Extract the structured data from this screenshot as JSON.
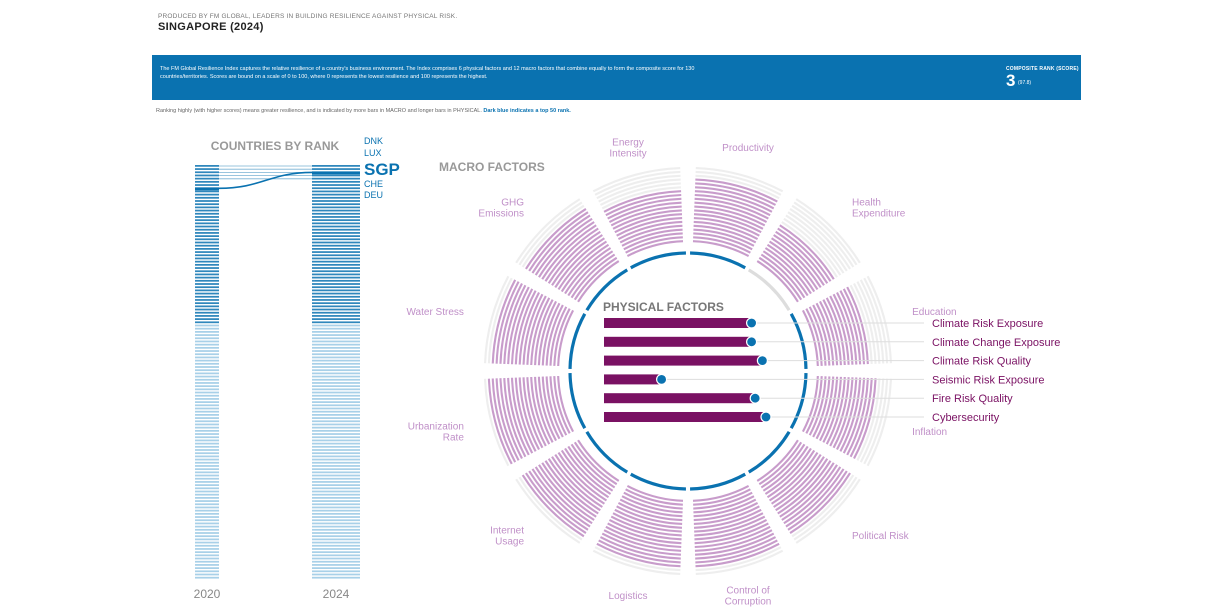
{
  "header": {
    "producer": "PRODUCED BY FM GLOBAL, LEADERS IN BUILDING RESILIENCE AGAINST PHYSICAL RISK.",
    "title": "SINGAPORE (2024)"
  },
  "banner": {
    "description": "The FM Global Resilience Index captures the relative resilience of a country's business environment. The Index comprises 6 physical factors and 12 macro factors that combine equally to form the composite score for 130 countries/territories. Scores are bound on a scale of 0 to 100, where 0 represents the lowest resilience and 100 represents the highest.",
    "composite_rank_label": "COMPOSITE RANK (SCORE)",
    "composite_rank": "3",
    "composite_score": "(97.8)"
  },
  "note": {
    "text": "Ranking highly (with higher scores) means greater resilience, and is indicated by more bars in MACRO and longer bars in PHYSICAL.",
    "emphasis": "Dark blue indicates a top 50 rank."
  },
  "colors": {
    "macro_bar": "#c89ccb",
    "macro_empty": "#eeeeee",
    "physical_bar": "#7a1163",
    "accent_blue": "#0a72b0",
    "light_blue": "#9fcbe6",
    "macro_label": "#c090c8"
  },
  "chart_data": [
    {
      "type": "bar",
      "title": "COUNTRIES BY RANK",
      "columns": [
        "2020",
        "2024"
      ],
      "top_countries": [
        "DNK",
        "LUX",
        "SGP",
        "CHE",
        "DEU"
      ],
      "highlight": "SGP",
      "countries_total": 130,
      "top_rank_threshold": 50,
      "rank_2020": 8,
      "rank_2024": 3
    },
    {
      "type": "bar",
      "title": "MACRO FACTORS",
      "max_bars": 20,
      "factors": [
        {
          "name": "Productivity",
          "bars": 17,
          "top50": true
        },
        {
          "name": "Health Expenditure",
          "bars": 12,
          "top50": false
        },
        {
          "name": "Education",
          "bars": 14,
          "top50": true
        },
        {
          "name": "Inflation",
          "bars": 16,
          "top50": true
        },
        {
          "name": "Political Risk",
          "bars": 17,
          "top50": true
        },
        {
          "name": "Control of Corruption",
          "bars": 18,
          "top50": true
        },
        {
          "name": "Logistics",
          "bars": 18,
          "top50": true
        },
        {
          "name": "Internet Usage",
          "bars": 18,
          "top50": true
        },
        {
          "name": "Urbanization Rate",
          "bars": 19,
          "top50": true
        },
        {
          "name": "Water Stress",
          "bars": 18,
          "top50": true
        },
        {
          "name": "GHG Emissions",
          "bars": 17,
          "top50": true
        },
        {
          "name": "Energy Intensity",
          "bars": 14,
          "top50": true
        }
      ]
    },
    {
      "type": "bar",
      "title": "PHYSICAL FACTORS",
      "xlim": [
        0,
        100
      ],
      "factors": [
        {
          "name": "Climate Risk Exposure",
          "value": 82,
          "top50": true
        },
        {
          "name": "Climate Change Exposure",
          "value": 82,
          "top50": true
        },
        {
          "name": "Climate Risk Quality",
          "value": 88,
          "top50": true
        },
        {
          "name": "Seismic Risk Exposure",
          "value": 32,
          "top50": false
        },
        {
          "name": "Fire Risk Quality",
          "value": 84,
          "top50": true
        },
        {
          "name": "Cybersecurity",
          "value": 90,
          "top50": true
        }
      ]
    }
  ]
}
